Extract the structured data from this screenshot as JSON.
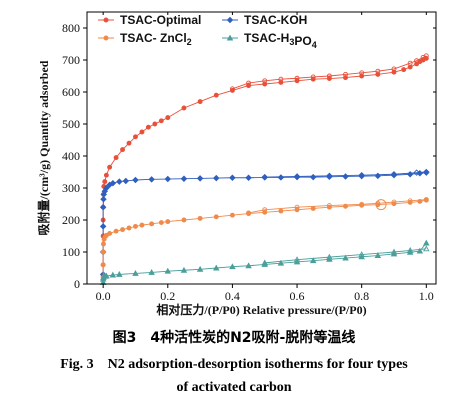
{
  "chart_data": {
    "type": "line",
    "xlabel_cn": "相对压力/(P/P0)",
    "xlabel_en": "Relative pressure/(P/P0)",
    "ylabel_cn": "吸附量/(cm³/g)",
    "ylabel_en": "Quantity adsorbed",
    "xlim": [
      -0.05,
      1.03
    ],
    "ylim": [
      0,
      850
    ],
    "xticks": [
      "0.0",
      "0.2",
      "0.4",
      "0.6",
      "0.8",
      "1.0"
    ],
    "xtick_values": [
      0,
      0.2,
      0.4,
      0.6,
      0.8,
      1.0
    ],
    "yticks": [
      "0",
      "100",
      "200",
      "300",
      "400",
      "500",
      "600",
      "700",
      "800"
    ],
    "ytick_values": [
      0,
      100,
      200,
      300,
      400,
      500,
      600,
      700,
      800
    ],
    "legend_position": "top-left",
    "series": [
      {
        "name": "TSAC-Optimal",
        "color": "#e8503a",
        "marker": "circle",
        "adsorption": {
          "x": [
            0.0,
            0.0,
            0.0,
            0.0,
            0.0,
            0.0,
            0.001,
            0.002,
            0.005,
            0.01,
            0.02,
            0.04,
            0.06,
            0.08,
            0.1,
            0.12,
            0.14,
            0.16,
            0.18,
            0.2,
            0.25,
            0.3,
            0.35,
            0.4,
            0.45,
            0.5,
            0.55,
            0.6,
            0.65,
            0.7,
            0.75,
            0.8,
            0.85,
            0.9,
            0.93,
            0.95,
            0.97,
            0.98,
            0.99,
            1.0
          ],
          "y": [
            25,
            60,
            100,
            150,
            200,
            240,
            280,
            305,
            320,
            340,
            365,
            395,
            420,
            440,
            460,
            475,
            490,
            500,
            510,
            520,
            550,
            570,
            590,
            605,
            620,
            625,
            630,
            635,
            640,
            642,
            645,
            650,
            655,
            662,
            670,
            678,
            688,
            695,
            700,
            705
          ]
        },
        "desorption": {
          "x": [
            1.0,
            0.99,
            0.97,
            0.95,
            0.9,
            0.85,
            0.8,
            0.75,
            0.7,
            0.65,
            0.6,
            0.55,
            0.5,
            0.45,
            0.4
          ],
          "y": [
            713,
            708,
            698,
            690,
            672,
            665,
            660,
            655,
            650,
            647,
            643,
            640,
            635,
            628,
            610
          ]
        }
      },
      {
        "name": "TSAC-KOH",
        "color": "#2f5fbf",
        "marker": "diamond",
        "adsorption": {
          "x": [
            0.0,
            0.0,
            0.0,
            0.0,
            0.001,
            0.002,
            0.005,
            0.01,
            0.02,
            0.03,
            0.05,
            0.07,
            0.1,
            0.15,
            0.2,
            0.25,
            0.3,
            0.35,
            0.4,
            0.45,
            0.5,
            0.55,
            0.6,
            0.65,
            0.7,
            0.75,
            0.8,
            0.85,
            0.9,
            0.95,
            0.98,
            1.0
          ],
          "y": [
            30,
            100,
            180,
            240,
            265,
            280,
            290,
            300,
            310,
            315,
            320,
            322,
            325,
            327,
            328,
            329,
            330,
            331,
            332,
            332,
            333,
            333,
            334,
            334,
            335,
            336,
            337,
            338,
            340,
            343,
            346,
            348
          ]
        },
        "desorption": {
          "x": [
            1.0,
            0.97,
            0.9,
            0.8,
            0.7,
            0.6,
            0.5
          ],
          "y": [
            350,
            348,
            343,
            340,
            338,
            336,
            334
          ]
        }
      },
      {
        "name": "TSAC- ZnCl2",
        "color": "#f08a4b",
        "marker": "circle",
        "adsorption": {
          "x": [
            0.0,
            0.0,
            0.0,
            0.001,
            0.003,
            0.006,
            0.01,
            0.02,
            0.04,
            0.06,
            0.08,
            0.1,
            0.12,
            0.15,
            0.18,
            0.2,
            0.25,
            0.3,
            0.35,
            0.4,
            0.45,
            0.5,
            0.55,
            0.6,
            0.65,
            0.7,
            0.75,
            0.8,
            0.85,
            0.9,
            0.95,
            0.98,
            1.0
          ],
          "y": [
            20,
            60,
            100,
            125,
            140,
            148,
            152,
            158,
            165,
            170,
            175,
            180,
            184,
            188,
            192,
            195,
            200,
            205,
            210,
            215,
            220,
            224,
            228,
            232,
            236,
            240,
            243,
            246,
            248,
            251,
            255,
            258,
            262
          ]
        },
        "desorption": {
          "x": [
            1.0,
            0.95,
            0.9,
            0.85,
            0.8,
            0.7,
            0.6,
            0.5,
            0.45
          ],
          "y": [
            264,
            260,
            256,
            252,
            249,
            245,
            240,
            232,
            222
          ]
        },
        "annotation_circle": {
          "x": 0.86,
          "y": 248
        }
      },
      {
        "name": "TSAC-H3PO4",
        "color": "#4a9f9a",
        "marker": "triangle",
        "adsorption": {
          "x": [
            0.0,
            0.0,
            0.001,
            0.005,
            0.01,
            0.03,
            0.05,
            0.1,
            0.15,
            0.2,
            0.25,
            0.3,
            0.35,
            0.4,
            0.45,
            0.5,
            0.55,
            0.6,
            0.65,
            0.7,
            0.75,
            0.8,
            0.85,
            0.9,
            0.95,
            0.98,
            1.0
          ],
          "y": [
            5,
            15,
            20,
            24,
            25,
            28,
            30,
            33,
            36,
            40,
            43,
            46,
            50,
            54,
            57,
            61,
            65,
            69,
            73,
            77,
            81,
            85,
            89,
            94,
            99,
            103,
            128
          ]
        },
        "desorption": {
          "x": [
            1.0,
            0.95,
            0.9,
            0.8,
            0.7,
            0.6,
            0.5
          ],
          "y": [
            110,
            105,
            100,
            92,
            84,
            76,
            66
          ]
        }
      }
    ]
  },
  "caption": {
    "cn": "图3　4种活性炭的N2吸附-脱附等温线",
    "en_line1": "Fig. 3　N2 adsorption-desorption isotherms for four types",
    "en_line2": "of activated carbon"
  }
}
